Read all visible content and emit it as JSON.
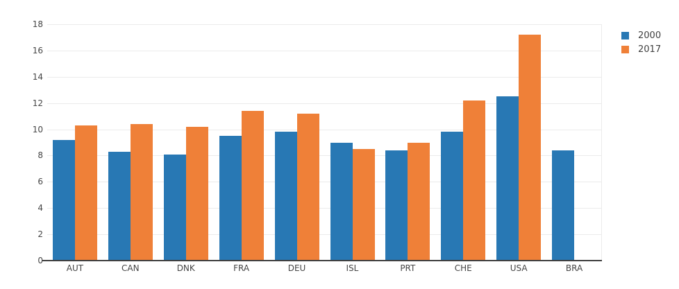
{
  "chart_data": {
    "type": "bar",
    "categories": [
      "AUT",
      "CAN",
      "DNK",
      "FRA",
      "DEU",
      "ISL",
      "PRT",
      "CHE",
      "USA",
      "BRA"
    ],
    "series": [
      {
        "name": "2000",
        "color": "#2878b4",
        "values": [
          9.2,
          8.3,
          8.1,
          9.5,
          9.8,
          9.0,
          8.4,
          9.8,
          12.5,
          8.4
        ]
      },
      {
        "name": "2017",
        "color": "#ef8038",
        "values": [
          10.3,
          10.4,
          10.2,
          11.4,
          11.2,
          8.5,
          9.0,
          12.2,
          17.2,
          null
        ]
      }
    ],
    "ylim": [
      0,
      18
    ],
    "yticks": [
      0,
      2,
      4,
      6,
      8,
      10,
      12,
      14,
      16,
      18
    ],
    "grid": true,
    "legend_position": "top-right"
  },
  "colors": {
    "grid": "#ebebeb",
    "axis": "#3f3f3f",
    "tick_text": "#444444",
    "background": "#ffffff"
  }
}
